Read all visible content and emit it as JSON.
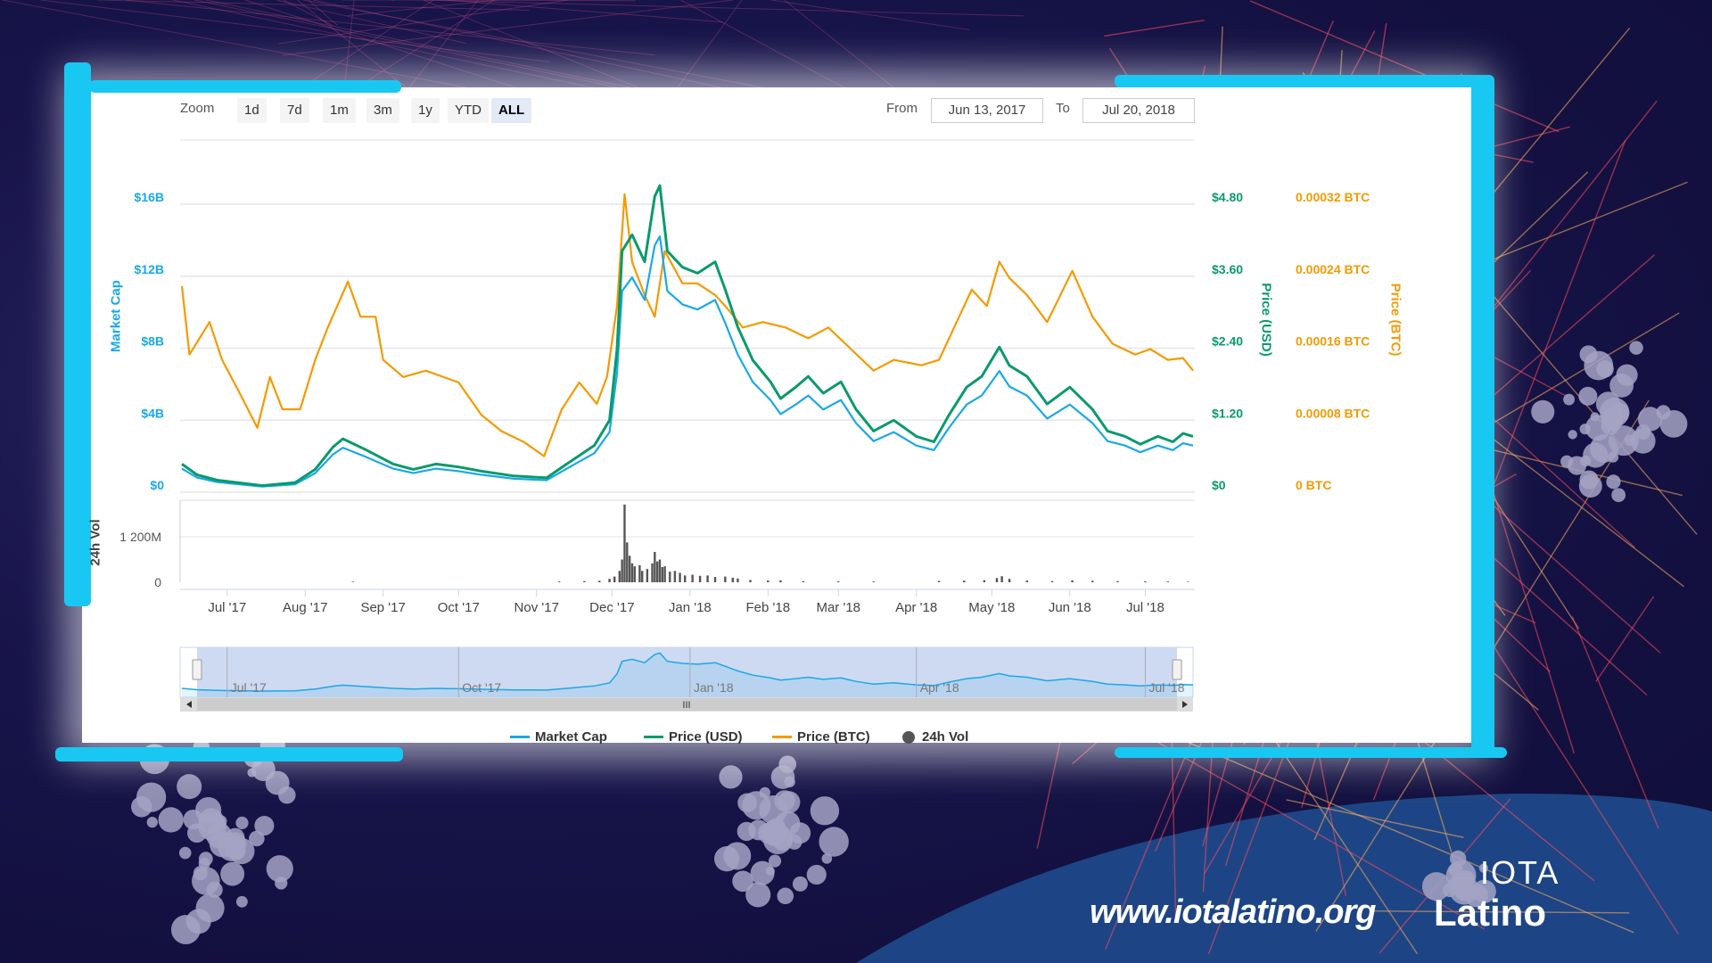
{
  "toolbar": {
    "zoom_label": "Zoom",
    "buttons": [
      "1d",
      "7d",
      "1m",
      "3m",
      "1y",
      "YTD",
      "ALL"
    ],
    "selected": "ALL",
    "from_label": "From",
    "from_value": "Jun 13, 2017",
    "to_label": "To",
    "to_value": "Jul 20, 2018"
  },
  "branding": {
    "url": "www.iotalatino.org",
    "logo_top": "IOTA",
    "logo_bottom": "Latino"
  },
  "colors": {
    "market_cap": "#1aa8e6",
    "price_usd": "#0a9a6c",
    "price_btc": "#f49a00",
    "volume": "#555555",
    "frame_brush": "#19c8f2",
    "background": "#17144a"
  },
  "chart_data": {
    "type": "line",
    "x_range": [
      "2017-06-13",
      "2018-07-20"
    ],
    "x_ticks": [
      {
        "date": "2017-07-01",
        "label": "Jul '17"
      },
      {
        "date": "2017-08-01",
        "label": "Aug '17"
      },
      {
        "date": "2017-09-01",
        "label": "Sep '17"
      },
      {
        "date": "2017-10-01",
        "label": "Oct '17"
      },
      {
        "date": "2017-11-01",
        "label": "Nov '17"
      },
      {
        "date": "2017-12-01",
        "label": "Dec '17"
      },
      {
        "date": "2018-01-01",
        "label": "Jan '18"
      },
      {
        "date": "2018-02-01",
        "label": "Feb '18"
      },
      {
        "date": "2018-03-01",
        "label": "Mar '18"
      },
      {
        "date": "2018-04-01",
        "label": "Apr '18"
      },
      {
        "date": "2018-05-01",
        "label": "May '18"
      },
      {
        "date": "2018-06-01",
        "label": "Jun '18"
      },
      {
        "date": "2018-07-01",
        "label": "Jul '18"
      }
    ],
    "axes": {
      "market_cap": {
        "title": "Market Cap",
        "ylim": [
          0,
          16
        ],
        "ticks": [
          "$0",
          "$4B",
          "$8B",
          "$12B",
          "$16B"
        ]
      },
      "price_usd": {
        "title": "Price (USD)",
        "ylim": [
          0,
          4.8
        ],
        "ticks": [
          "$0",
          "$1.20",
          "$2.40",
          "$3.60",
          "$4.80"
        ]
      },
      "price_btc": {
        "title": "Price (BTC)",
        "ylim": [
          0,
          0.00032
        ],
        "ticks": [
          "0 BTC",
          "0.00008 BTC",
          "0.00016 BTC",
          "0.00024 BTC",
          "0.00032 BTC"
        ]
      },
      "volume": {
        "title": "24h Vol",
        "ylim": [
          0,
          1200
        ],
        "ticks": [
          "0",
          "1 200M"
        ]
      }
    },
    "grid": true,
    "legend_position": "bottom",
    "legend": [
      "Market Cap",
      "Price (USD)",
      "Price (BTC)",
      "24h Vol"
    ],
    "series": [
      {
        "name": "Market Cap",
        "unit": "$B",
        "points": [
          [
            "2017-06-13",
            1.31
          ],
          [
            "2017-06-19",
            0.81
          ],
          [
            "2017-06-27",
            0.56
          ],
          [
            "2017-07-15",
            0.31
          ],
          [
            "2017-07-28",
            0.44
          ],
          [
            "2017-08-05",
            1.06
          ],
          [
            "2017-08-12",
            2.09
          ],
          [
            "2017-08-16",
            2.47
          ],
          [
            "2017-08-25",
            1.97
          ],
          [
            "2017-09-05",
            1.31
          ],
          [
            "2017-09-13",
            1.06
          ],
          [
            "2017-09-22",
            1.31
          ],
          [
            "2017-10-01",
            1.17
          ],
          [
            "2017-10-10",
            0.97
          ],
          [
            "2017-10-23",
            0.75
          ],
          [
            "2017-11-05",
            0.67
          ],
          [
            "2017-11-13",
            1.31
          ],
          [
            "2017-11-24",
            2.17
          ],
          [
            "2017-11-30",
            3.34
          ],
          [
            "2017-12-03",
            6.62
          ],
          [
            "2017-12-05",
            11.18
          ],
          [
            "2017-12-09",
            11.93
          ],
          [
            "2017-12-14",
            10.68
          ],
          [
            "2017-12-18",
            13.71
          ],
          [
            "2017-12-20",
            14.21
          ],
          [
            "2017-12-23",
            11.18
          ],
          [
            "2017-12-29",
            10.43
          ],
          [
            "2018-01-04",
            10.15
          ],
          [
            "2018-01-11",
            10.68
          ],
          [
            "2018-01-15",
            9.4
          ],
          [
            "2018-01-20",
            7.65
          ],
          [
            "2018-01-26",
            6.12
          ],
          [
            "2018-02-02",
            5.12
          ],
          [
            "2018-02-06",
            4.34
          ],
          [
            "2018-02-12",
            4.87
          ],
          [
            "2018-02-17",
            5.37
          ],
          [
            "2018-02-23",
            4.59
          ],
          [
            "2018-03-02",
            5.12
          ],
          [
            "2018-03-08",
            3.84
          ],
          [
            "2018-03-15",
            2.84
          ],
          [
            "2018-03-23",
            3.34
          ],
          [
            "2018-04-01",
            2.59
          ],
          [
            "2018-04-08",
            2.34
          ],
          [
            "2018-04-14",
            3.59
          ],
          [
            "2018-04-21",
            4.87
          ],
          [
            "2018-04-27",
            5.37
          ],
          [
            "2018-05-04",
            6.73
          ],
          [
            "2018-05-08",
            5.87
          ],
          [
            "2018-05-15",
            5.37
          ],
          [
            "2018-05-23",
            4.09
          ],
          [
            "2018-06-01",
            4.87
          ],
          [
            "2018-06-10",
            3.84
          ],
          [
            "2018-06-16",
            2.84
          ],
          [
            "2018-06-23",
            2.59
          ],
          [
            "2018-06-29",
            2.22
          ],
          [
            "2018-07-06",
            2.59
          ],
          [
            "2018-07-12",
            2.34
          ],
          [
            "2018-07-16",
            2.72
          ],
          [
            "2018-07-20",
            2.59
          ]
        ]
      },
      {
        "name": "Price (USD)",
        "unit": "USD",
        "points": [
          [
            "2017-06-13",
            0.47
          ],
          [
            "2017-06-19",
            0.29
          ],
          [
            "2017-06-27",
            0.2
          ],
          [
            "2017-07-15",
            0.11
          ],
          [
            "2017-07-28",
            0.16
          ],
          [
            "2017-08-05",
            0.38
          ],
          [
            "2017-08-12",
            0.75
          ],
          [
            "2017-08-16",
            0.89
          ],
          [
            "2017-08-25",
            0.71
          ],
          [
            "2017-09-05",
            0.47
          ],
          [
            "2017-09-13",
            0.38
          ],
          [
            "2017-09-22",
            0.47
          ],
          [
            "2017-10-01",
            0.42
          ],
          [
            "2017-10-10",
            0.35
          ],
          [
            "2017-10-23",
            0.27
          ],
          [
            "2017-11-05",
            0.24
          ],
          [
            "2017-11-13",
            0.47
          ],
          [
            "2017-11-24",
            0.78
          ],
          [
            "2017-11-30",
            1.2
          ],
          [
            "2017-12-03",
            2.38
          ],
          [
            "2017-12-05",
            4.02
          ],
          [
            "2017-12-09",
            4.29
          ],
          [
            "2017-12-14",
            3.84
          ],
          [
            "2017-12-18",
            4.93
          ],
          [
            "2017-12-20",
            5.11
          ],
          [
            "2017-12-23",
            4.02
          ],
          [
            "2017-12-29",
            3.75
          ],
          [
            "2018-01-04",
            3.65
          ],
          [
            "2018-01-11",
            3.84
          ],
          [
            "2018-01-15",
            3.38
          ],
          [
            "2018-01-20",
            2.75
          ],
          [
            "2018-01-26",
            2.2
          ],
          [
            "2018-02-02",
            1.84
          ],
          [
            "2018-02-06",
            1.56
          ],
          [
            "2018-02-12",
            1.75
          ],
          [
            "2018-02-17",
            1.93
          ],
          [
            "2018-02-23",
            1.65
          ],
          [
            "2018-03-02",
            1.84
          ],
          [
            "2018-03-08",
            1.38
          ],
          [
            "2018-03-15",
            1.02
          ],
          [
            "2018-03-23",
            1.2
          ],
          [
            "2018-04-01",
            0.93
          ],
          [
            "2018-04-08",
            0.84
          ],
          [
            "2018-04-14",
            1.29
          ],
          [
            "2018-04-21",
            1.75
          ],
          [
            "2018-04-27",
            1.93
          ],
          [
            "2018-05-04",
            2.42
          ],
          [
            "2018-05-08",
            2.11
          ],
          [
            "2018-05-15",
            1.93
          ],
          [
            "2018-05-23",
            1.47
          ],
          [
            "2018-06-01",
            1.75
          ],
          [
            "2018-06-10",
            1.38
          ],
          [
            "2018-06-16",
            1.02
          ],
          [
            "2018-06-23",
            0.93
          ],
          [
            "2018-06-29",
            0.8
          ],
          [
            "2018-07-06",
            0.93
          ],
          [
            "2018-07-12",
            0.84
          ],
          [
            "2018-07-16",
            0.98
          ],
          [
            "2018-07-20",
            0.93
          ]
        ]
      },
      {
        "name": "Price (BTC)",
        "unit": "BTC",
        "points": [
          [
            "2017-06-13",
            0.000229
          ],
          [
            "2017-06-16",
            0.000153
          ],
          [
            "2017-06-24",
            0.000189
          ],
          [
            "2017-06-29",
            0.000147
          ],
          [
            "2017-07-06",
            0.00011
          ],
          [
            "2017-07-13",
            7.15e-05
          ],
          [
            "2017-07-18",
            0.000128
          ],
          [
            "2017-07-23",
            9.21e-05
          ],
          [
            "2017-07-30",
            9.21e-05
          ],
          [
            "2017-08-05",
            0.000147
          ],
          [
            "2017-08-10",
            0.000183
          ],
          [
            "2017-08-18",
            0.000234
          ],
          [
            "2017-08-23",
            0.000195
          ],
          [
            "2017-08-29",
            0.000195
          ],
          [
            "2017-09-01",
            0.000147
          ],
          [
            "2017-09-09",
            0.000128
          ],
          [
            "2017-09-18",
            0.000135
          ],
          [
            "2017-10-01",
            0.000122
          ],
          [
            "2017-10-10",
            8.61e-05
          ],
          [
            "2017-10-18",
            6.79e-05
          ],
          [
            "2017-10-27",
            5.58e-05
          ],
          [
            "2017-11-04",
            4e-05
          ],
          [
            "2017-11-11",
            9.21e-05
          ],
          [
            "2017-11-18",
            0.000122
          ],
          [
            "2017-11-25",
            9.82e-05
          ],
          [
            "2017-11-29",
            0.000128
          ],
          [
            "2017-12-03",
            0.000207
          ],
          [
            "2017-12-06",
            0.000331
          ],
          [
            "2017-12-09",
            0.000256
          ],
          [
            "2017-12-14",
            0.000219
          ],
          [
            "2017-12-18",
            0.000195
          ],
          [
            "2017-12-22",
            0.000268
          ],
          [
            "2017-12-29",
            0.000232
          ],
          [
            "2018-01-04",
            0.000232
          ],
          [
            "2018-01-11",
            0.000219
          ],
          [
            "2018-01-15",
            0.000207
          ],
          [
            "2018-01-22",
            0.000183
          ],
          [
            "2018-01-30",
            0.000189
          ],
          [
            "2018-02-08",
            0.000183
          ],
          [
            "2018-02-17",
            0.000171
          ],
          [
            "2018-02-25",
            0.000183
          ],
          [
            "2018-03-06",
            0.000159
          ],
          [
            "2018-03-15",
            0.000135
          ],
          [
            "2018-03-23",
            0.000147
          ],
          [
            "2018-04-03",
            0.000141
          ],
          [
            "2018-04-10",
            0.000147
          ],
          [
            "2018-04-16",
            0.000183
          ],
          [
            "2018-04-23",
            0.000225
          ],
          [
            "2018-04-29",
            0.000207
          ],
          [
            "2018-05-04",
            0.000256
          ],
          [
            "2018-05-08",
            0.000238
          ],
          [
            "2018-05-15",
            0.000219
          ],
          [
            "2018-05-23",
            0.000189
          ],
          [
            "2018-06-02",
            0.000246
          ],
          [
            "2018-06-10",
            0.000195
          ],
          [
            "2018-06-18",
            0.000165
          ],
          [
            "2018-06-27",
            0.000153
          ],
          [
            "2018-07-03",
            0.000159
          ],
          [
            "2018-07-10",
            0.000147
          ],
          [
            "2018-07-16",
            0.000149
          ],
          [
            "2018-07-20",
            0.000135
          ]
        ]
      },
      {
        "name": "24h Vol",
        "unit": "M USD",
        "type": "bar",
        "points": [
          [
            "2017-08-20",
            15
          ],
          [
            "2017-11-10",
            20
          ],
          [
            "2017-11-20",
            30
          ],
          [
            "2017-11-26",
            40
          ],
          [
            "2017-11-30",
            90
          ],
          [
            "2017-12-02",
            150
          ],
          [
            "2017-12-04",
            300
          ],
          [
            "2017-12-05",
            600
          ],
          [
            "2017-12-06",
            2050
          ],
          [
            "2017-12-07",
            1050
          ],
          [
            "2017-12-08",
            700
          ],
          [
            "2017-12-09",
            500
          ],
          [
            "2017-12-10",
            420
          ],
          [
            "2017-12-12",
            450
          ],
          [
            "2017-12-13",
            300
          ],
          [
            "2017-12-15",
            350
          ],
          [
            "2017-12-17",
            500
          ],
          [
            "2017-12-18",
            800
          ],
          [
            "2017-12-19",
            550
          ],
          [
            "2017-12-20",
            600
          ],
          [
            "2017-12-21",
            400
          ],
          [
            "2017-12-22",
            420
          ],
          [
            "2017-12-24",
            280
          ],
          [
            "2017-12-26",
            300
          ],
          [
            "2017-12-28",
            250
          ],
          [
            "2017-12-30",
            180
          ],
          [
            "2018-01-02",
            200
          ],
          [
            "2018-01-05",
            170
          ],
          [
            "2018-01-08",
            180
          ],
          [
            "2018-01-11",
            140
          ],
          [
            "2018-01-15",
            150
          ],
          [
            "2018-01-18",
            120
          ],
          [
            "2018-01-20",
            100
          ],
          [
            "2018-01-25",
            60
          ],
          [
            "2018-02-01",
            45
          ],
          [
            "2018-02-06",
            50
          ],
          [
            "2018-02-15",
            30
          ],
          [
            "2018-03-01",
            25
          ],
          [
            "2018-03-15",
            20
          ],
          [
            "2018-04-10",
            35
          ],
          [
            "2018-04-20",
            45
          ],
          [
            "2018-04-28",
            55
          ],
          [
            "2018-05-03",
            110
          ],
          [
            "2018-05-05",
            160
          ],
          [
            "2018-05-08",
            90
          ],
          [
            "2018-05-15",
            45
          ],
          [
            "2018-05-25",
            30
          ],
          [
            "2018-06-02",
            50
          ],
          [
            "2018-06-10",
            40
          ],
          [
            "2018-06-20",
            30
          ],
          [
            "2018-07-01",
            25
          ],
          [
            "2018-07-10",
            20
          ],
          [
            "2018-07-18",
            15
          ]
        ]
      }
    ],
    "navigator": {
      "labels": [
        "Jul '17",
        "Oct '17",
        "Jan '18",
        "Apr '18",
        "Jul '18"
      ],
      "label_dates": [
        "2017-07-01",
        "2017-10-01",
        "2018-01-01",
        "2018-04-01",
        "2018-07-01"
      ],
      "scrollbar_grip": "III"
    }
  }
}
